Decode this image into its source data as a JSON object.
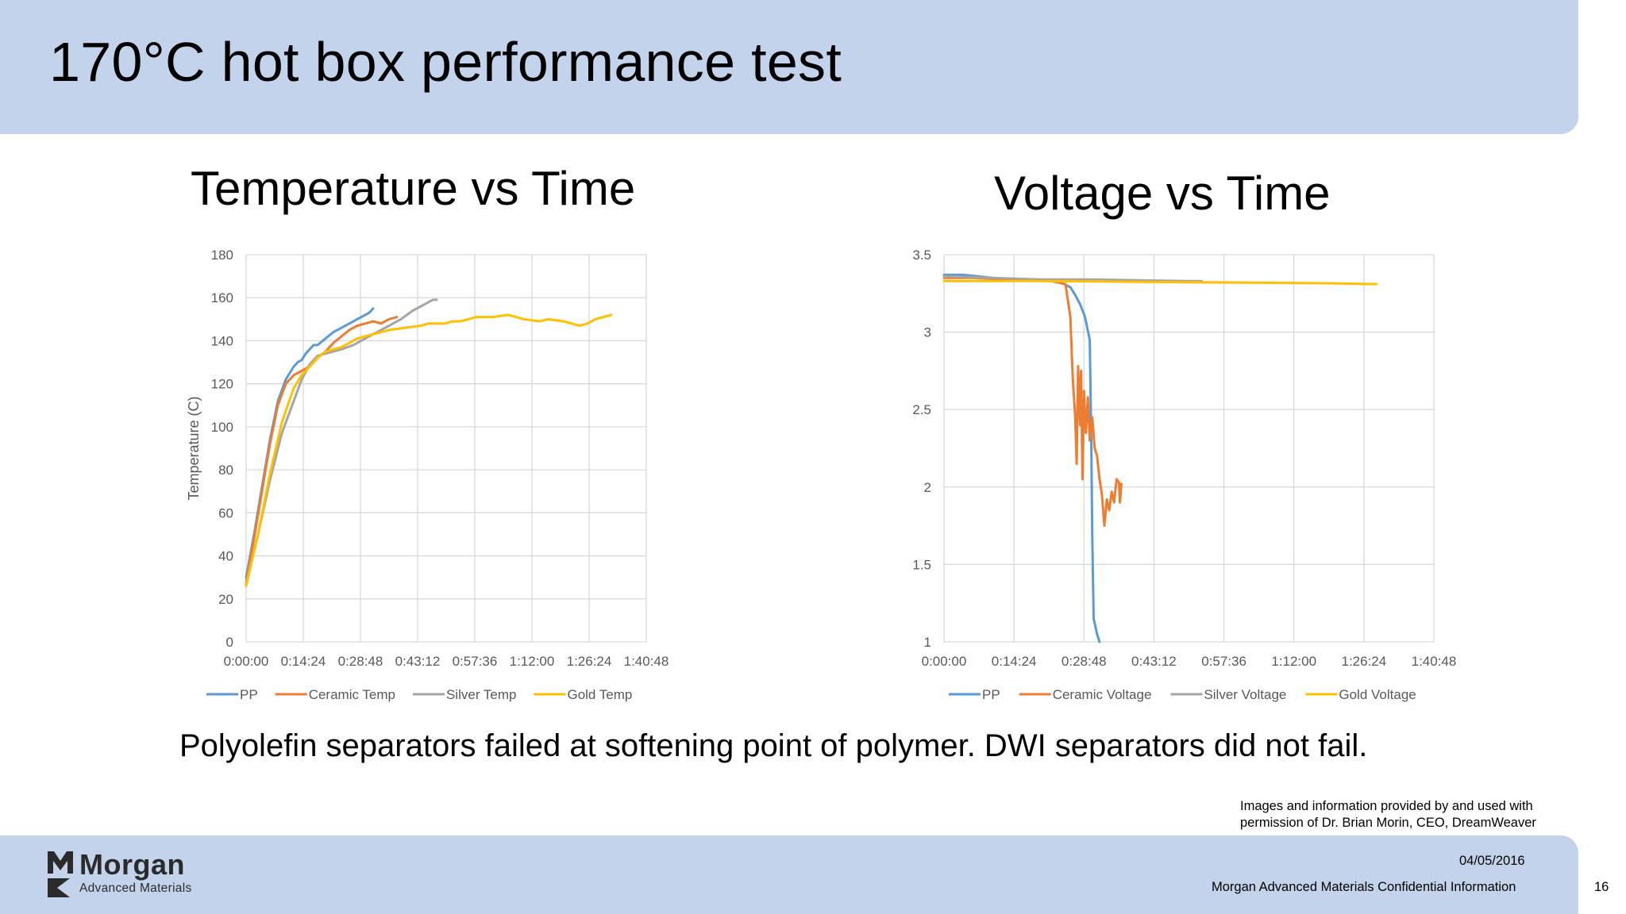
{
  "slide": {
    "title": "170°C hot box performance test",
    "caption": "Polyolefin separators failed at softening point of polymer. DWI separators did not fail.",
    "credit": "Images and information provided by and used with permission of Dr. Brian Morin, CEO, DreamWeaver",
    "footer_date": "04/05/2016",
    "footer_confidential": "Morgan Advanced Materials Confidential Information",
    "page_number": "16",
    "logo_name": "Morgan",
    "logo_subtitle": "Advanced Materials"
  },
  "colors": {
    "header_band": "#c3d3eb",
    "pp": "#5b9bd5",
    "ceramic": "#ed7d31",
    "silver": "#a5a5a5",
    "gold": "#ffc000"
  },
  "chart_data": [
    {
      "type": "line",
      "title": "Temperature vs Time",
      "xlabel": "",
      "ylabel": "Temperature (C)",
      "x_unit": "minutes",
      "xlim": [
        0,
        100.8
      ],
      "ylim": [
        0,
        180
      ],
      "x_ticks": [
        0,
        14.4,
        28.8,
        43.2,
        57.6,
        72,
        86.4,
        100.8
      ],
      "x_tick_labels": [
        "0:00:00",
        "0:14:24",
        "0:28:48",
        "0:43:12",
        "0:57:36",
        "1:12:00",
        "1:26:24",
        "1:40:48"
      ],
      "y_ticks": [
        0,
        20,
        40,
        60,
        80,
        100,
        120,
        140,
        160,
        180
      ],
      "y_tick_labels": [
        "0",
        "20",
        "40",
        "60",
        "80",
        "100",
        "120",
        "140",
        "160",
        "180"
      ],
      "grid": true,
      "legend": "bottom",
      "series": [
        {
          "name": "PP",
          "color": "#5b9bd5",
          "points": [
            [
              0,
              30
            ],
            [
              2,
              50
            ],
            [
              4,
              72
            ],
            [
              6,
              94
            ],
            [
              8,
              112
            ],
            [
              10,
              122
            ],
            [
              12,
              128
            ],
            [
              13,
              130
            ],
            [
              14,
              131
            ],
            [
              15,
              134
            ],
            [
              16,
              136
            ],
            [
              17,
              138
            ],
            [
              18,
              138
            ],
            [
              20,
              141
            ],
            [
              22,
              144
            ],
            [
              24,
              146
            ],
            [
              26,
              148
            ],
            [
              28,
              150
            ],
            [
              30,
              152
            ],
            [
              31,
              153
            ],
            [
              32,
              155
            ]
          ]
        },
        {
          "name": "Ceramic Temp",
          "color": "#ed7d31",
          "points": [
            [
              0,
              28
            ],
            [
              2,
              48
            ],
            [
              4,
              70
            ],
            [
              6,
              92
            ],
            [
              8,
              110
            ],
            [
              10,
              120
            ],
            [
              12,
              124
            ],
            [
              14,
              126
            ],
            [
              16,
              128
            ],
            [
              18,
              132
            ],
            [
              20,
              135
            ],
            [
              22,
              139
            ],
            [
              24,
              142
            ],
            [
              26,
              145
            ],
            [
              28,
              147
            ],
            [
              30,
              148
            ],
            [
              32,
              149
            ],
            [
              34,
              148
            ],
            [
              36,
              150
            ],
            [
              38,
              151
            ]
          ]
        },
        {
          "name": "Silver Temp",
          "color": "#a5a5a5",
          "points": [
            [
              0,
              27
            ],
            [
              3,
              50
            ],
            [
              6,
              75
            ],
            [
              9,
              97
            ],
            [
              12,
              112
            ],
            [
              14,
              122
            ],
            [
              16,
              129
            ],
            [
              18,
              133
            ],
            [
              20,
              134
            ],
            [
              22,
              135
            ],
            [
              24,
              136
            ],
            [
              27,
              138
            ],
            [
              30,
              141
            ],
            [
              33,
              144
            ],
            [
              36,
              147
            ],
            [
              39,
              150
            ],
            [
              42,
              154
            ],
            [
              45,
              157
            ],
            [
              47,
              159
            ],
            [
              48,
              159
            ]
          ]
        },
        {
          "name": "Gold Temp",
          "color": "#ffc000",
          "points": [
            [
              0,
              26
            ],
            [
              3,
              50
            ],
            [
              6,
              78
            ],
            [
              9,
              102
            ],
            [
              12,
              118
            ],
            [
              14,
              124
            ],
            [
              16,
              128
            ],
            [
              18,
              132
            ],
            [
              20,
              135
            ],
            [
              22,
              136
            ],
            [
              24,
              137
            ],
            [
              26,
              139
            ],
            [
              28,
              141
            ],
            [
              30,
              142
            ],
            [
              32,
              143
            ],
            [
              36,
              145
            ],
            [
              40,
              146
            ],
            [
              44,
              147
            ],
            [
              46,
              148
            ],
            [
              48,
              148
            ],
            [
              50,
              148
            ],
            [
              52,
              149
            ],
            [
              54,
              149
            ],
            [
              56,
              150
            ],
            [
              58,
              151
            ],
            [
              62,
              151
            ],
            [
              66,
              152
            ],
            [
              68,
              151
            ],
            [
              70,
              150
            ],
            [
              74,
              149
            ],
            [
              76,
              150
            ],
            [
              80,
              149
            ],
            [
              82,
              148
            ],
            [
              84,
              147
            ],
            [
              86,
              148
            ],
            [
              88,
              150
            ],
            [
              90,
              151
            ],
            [
              92,
              152
            ]
          ]
        }
      ]
    },
    {
      "type": "line",
      "title": "Voltage vs Time",
      "xlabel": "",
      "ylabel": "",
      "x_unit": "minutes",
      "xlim": [
        0,
        100.8
      ],
      "ylim": [
        1,
        3.5
      ],
      "x_ticks": [
        0,
        14.4,
        28.8,
        43.2,
        57.6,
        72,
        86.4,
        100.8
      ],
      "x_tick_labels": [
        "0:00:00",
        "0:14:24",
        "0:28:48",
        "0:43:12",
        "0:57:36",
        "1:12:00",
        "1:26:24",
        "1:40:48"
      ],
      "y_ticks": [
        1,
        1.5,
        2,
        2.5,
        3,
        3.5
      ],
      "y_tick_labels": [
        "1",
        "1.5",
        "2",
        "2.5",
        "3",
        "3.5"
      ],
      "grid": true,
      "legend": "bottom",
      "series": [
        {
          "name": "PP",
          "color": "#5b9bd5",
          "points": [
            [
              0,
              3.37
            ],
            [
              4,
              3.37
            ],
            [
              10,
              3.35
            ],
            [
              16,
              3.34
            ],
            [
              22,
              3.33
            ],
            [
              24,
              3.32
            ],
            [
              26,
              3.29
            ],
            [
              27,
              3.24
            ],
            [
              28,
              3.18
            ],
            [
              29,
              3.1
            ],
            [
              30,
              2.95
            ],
            [
              30.3,
              2.3
            ],
            [
              30.5,
              1.7
            ],
            [
              30.8,
              1.15
            ],
            [
              31.5,
              1.05
            ],
            [
              32,
              1
            ]
          ]
        },
        {
          "name": "Ceramic Voltage",
          "color": "#ed7d31",
          "points": [
            [
              0,
              3.35
            ],
            [
              6,
              3.35
            ],
            [
              12,
              3.34
            ],
            [
              18,
              3.34
            ],
            [
              22,
              3.33
            ],
            [
              25,
              3.31
            ],
            [
              26,
              3.1
            ],
            [
              26.5,
              2.7
            ],
            [
              27,
              2.45
            ],
            [
              27.3,
              2.15
            ],
            [
              27.6,
              2.78
            ],
            [
              28,
              2.4
            ],
            [
              28.2,
              2.75
            ],
            [
              28.5,
              2.05
            ],
            [
              28.8,
              2.62
            ],
            [
              29.2,
              2.35
            ],
            [
              29.6,
              2.58
            ],
            [
              30,
              2.3
            ],
            [
              30.5,
              2.45
            ],
            [
              31,
              2.25
            ],
            [
              31.5,
              2.2
            ],
            [
              32,
              2.05
            ],
            [
              32.5,
              1.95
            ],
            [
              33,
              1.75
            ],
            [
              33.5,
              1.92
            ],
            [
              34,
              1.85
            ],
            [
              34.5,
              1.97
            ],
            [
              35,
              1.9
            ],
            [
              35.5,
              2.05
            ],
            [
              36,
              2.03
            ],
            [
              36.2,
              1.9
            ],
            [
              36.5,
              2.02
            ]
          ]
        },
        {
          "name": "Silver Voltage",
          "color": "#a5a5a5",
          "points": [
            [
              0,
              3.36
            ],
            [
              10,
              3.35
            ],
            [
              20,
              3.34
            ],
            [
              30,
              3.34
            ],
            [
              40,
              3.335
            ],
            [
              50,
              3.33
            ],
            [
              53,
              3.33
            ]
          ]
        },
        {
          "name": "Gold Voltage",
          "color": "#ffc000",
          "points": [
            [
              0,
              3.33
            ],
            [
              20,
              3.33
            ],
            [
              40,
              3.325
            ],
            [
              60,
              3.32
            ],
            [
              80,
              3.315
            ],
            [
              89,
              3.31
            ]
          ]
        }
      ]
    }
  ]
}
